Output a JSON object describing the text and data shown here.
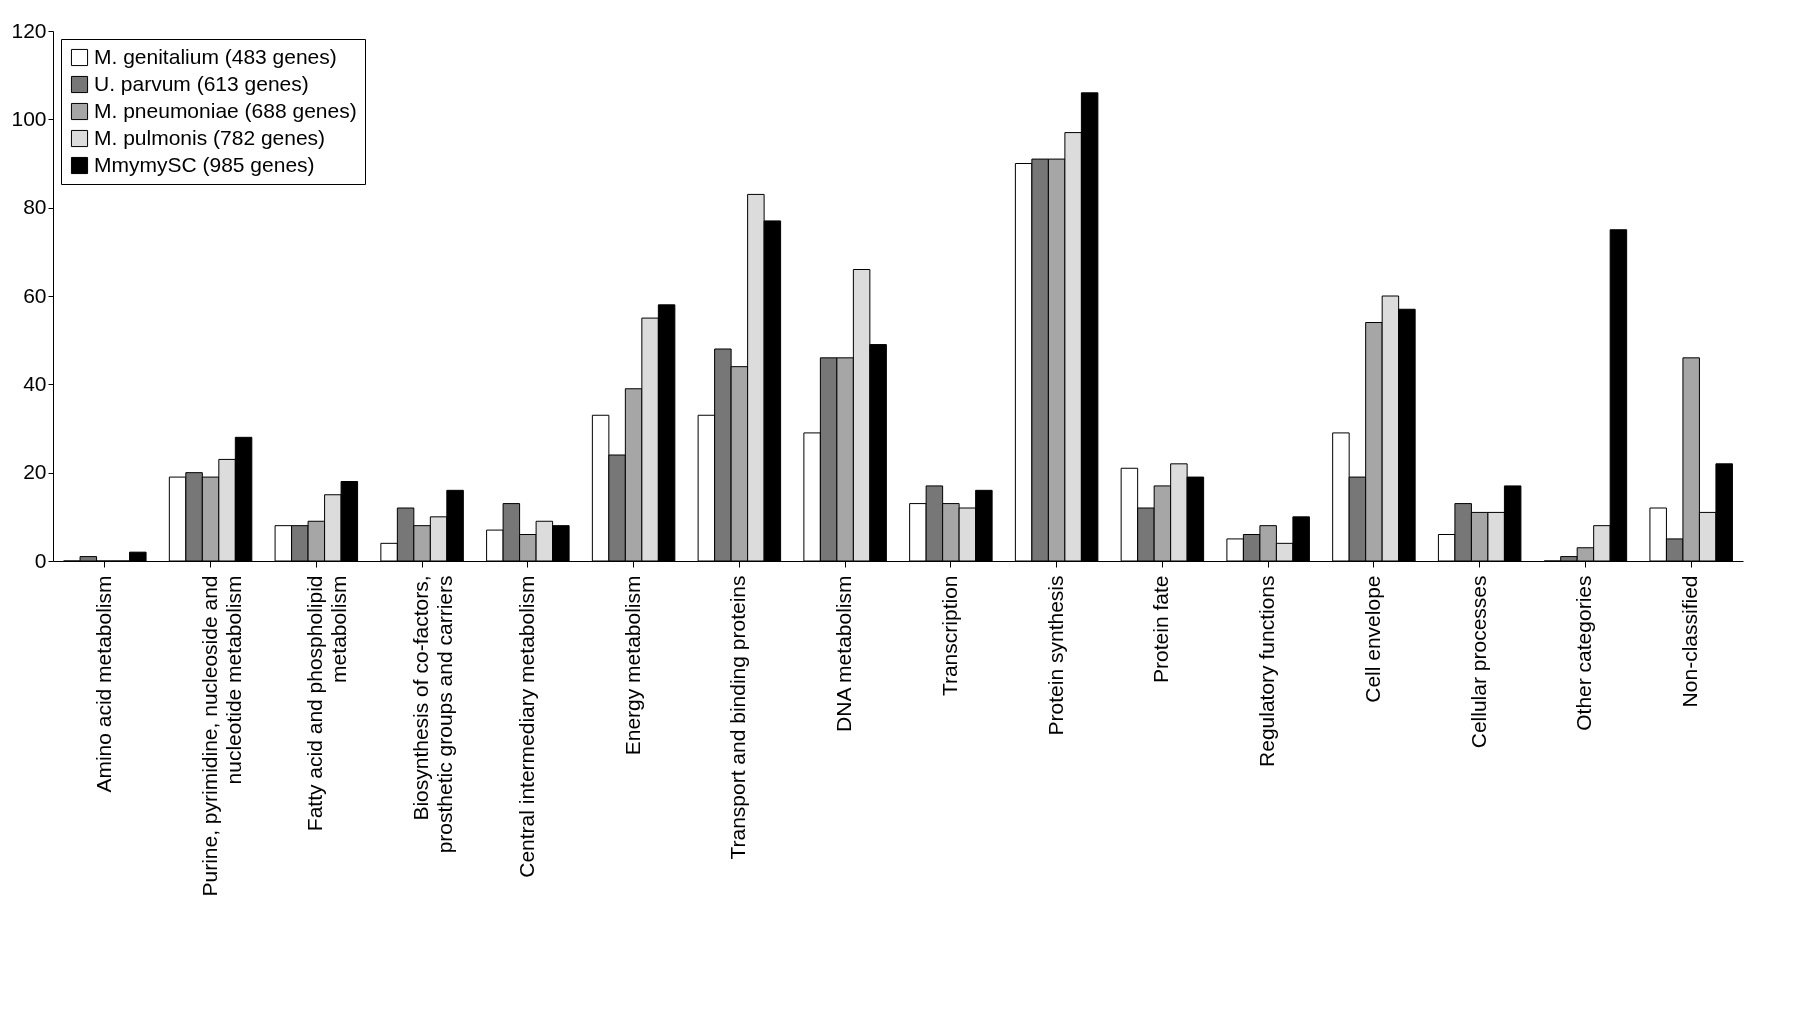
{
  "chart_data": {
    "type": "bar",
    "categories": [
      "Amino acid metabolism",
      "Purine, pyrimidine, nucleoside and nucleotide metabolism",
      "Fatty acid and phospholipid metabolism",
      "Biosynthesis of co-factors, prosthetic groups and carriers",
      "Central intermediary metabolism",
      "Energy metabolism",
      "Transport and binding proteins",
      "DNA metabolism",
      "Transcription",
      "Protein synthesis",
      "Protein fate",
      "Regulatory functions",
      "Cell envelope",
      "Cellular processes",
      "Other categories",
      "Non-classified"
    ],
    "series": [
      {
        "name": "M. genitalium (483 genes)",
        "color": "#ffffff",
        "values": [
          0,
          19,
          8,
          4,
          7,
          33,
          33,
          29,
          13,
          90,
          21,
          5,
          29,
          6,
          0,
          12
        ]
      },
      {
        "name": "U. parvum (613 genes)",
        "color": "#777777",
        "values": [
          1,
          20,
          8,
          12,
          13,
          24,
          48,
          46,
          17,
          91,
          12,
          6,
          19,
          13,
          1,
          5
        ]
      },
      {
        "name": "M. pneumoniae (688 genes)",
        "color": "#a6a6a6",
        "values": [
          0,
          19,
          9,
          8,
          6,
          39,
          44,
          46,
          13,
          91,
          17,
          8,
          54,
          11,
          3,
          46
        ]
      },
      {
        "name": "M. pulmonis (782 genes)",
        "color": "#dcdcdc",
        "values": [
          0,
          23,
          15,
          10,
          9,
          55,
          83,
          66,
          12,
          97,
          22,
          4,
          60,
          11,
          8,
          11
        ]
      },
      {
        "name": "MmymySC (985 genes)",
        "color": "#000000",
        "values": [
          2,
          28,
          18,
          16,
          8,
          58,
          77,
          49,
          16,
          106,
          19,
          10,
          57,
          17,
          75,
          22
        ]
      }
    ],
    "ylim": [
      0,
      120
    ],
    "yticks": [
      0,
      20,
      40,
      60,
      80,
      100,
      120
    ],
    "grid": false,
    "legend": "top left"
  }
}
